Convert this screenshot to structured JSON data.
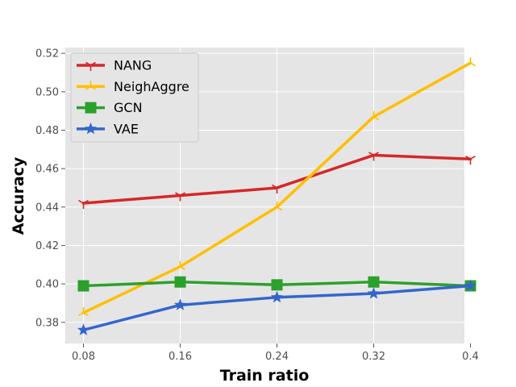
{
  "chart_data": {
    "type": "line",
    "title": "",
    "xlabel": "Train ratio",
    "ylabel": "Accuracy",
    "categories": [
      "0.08",
      "0.16",
      "0.24",
      "0.32",
      "0.4"
    ],
    "x": [
      0.08,
      0.16,
      0.24,
      0.32,
      0.4
    ],
    "xlim": [
      0.065,
      0.395
    ],
    "ylim": [
      0.369,
      0.523
    ],
    "yticks": [
      0.38,
      0.4,
      0.42,
      0.44,
      0.46,
      0.48,
      0.5,
      0.52
    ],
    "ytick_labels": [
      "0.38",
      "0.40",
      "0.42",
      "0.44",
      "0.46",
      "0.48",
      "0.50",
      "0.52"
    ],
    "grid": true,
    "legend_position": "top-left",
    "series": [
      {
        "name": "NANG",
        "values": [
          0.442,
          0.446,
          0.45,
          0.467,
          0.465
        ],
        "color": "#d62728",
        "marker": "tri-down-icon"
      },
      {
        "name": "NeighAggre",
        "values": [
          0.385,
          0.409,
          0.44,
          0.487,
          0.515
        ],
        "color": "#ffbf00",
        "marker": "tri-up-icon"
      },
      {
        "name": "GCN",
        "values": [
          0.399,
          0.401,
          0.3995,
          0.401,
          0.399
        ],
        "color": "#2ca02c",
        "marker": "square-icon"
      },
      {
        "name": "VAE",
        "values": [
          0.376,
          0.389,
          0.393,
          0.395,
          0.399
        ],
        "color": "#3366cc",
        "marker": "star-icon"
      }
    ]
  }
}
